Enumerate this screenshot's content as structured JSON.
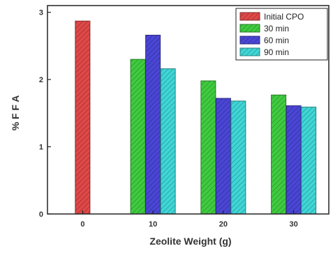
{
  "chart_data": {
    "type": "bar",
    "xlabel": "Zeolite Weight (g)",
    "ylabel": "% F F A",
    "xlim": [
      -5,
      35
    ],
    "ylim": [
      0,
      3.1
    ],
    "xticks": [
      0,
      10,
      20,
      30
    ],
    "yticks": [
      0,
      1,
      2,
      3
    ],
    "grid": false,
    "legend_position": "top-right",
    "series": [
      {
        "name": "Initial CPO",
        "color": "#e04848",
        "points": [
          {
            "x": 0,
            "y": 2.87
          }
        ]
      },
      {
        "name": "30 min",
        "color": "#3fcc3f",
        "points": [
          {
            "x": 10,
            "y": 2.3
          },
          {
            "x": 20,
            "y": 1.98
          },
          {
            "x": 30,
            "y": 1.77
          }
        ]
      },
      {
        "name": "60 min",
        "color": "#4a46d6",
        "points": [
          {
            "x": 10,
            "y": 2.66
          },
          {
            "x": 20,
            "y": 1.72
          },
          {
            "x": 30,
            "y": 1.61
          }
        ]
      },
      {
        "name": "90 min",
        "color": "#3fd6d6",
        "points": [
          {
            "x": 10,
            "y": 2.16
          },
          {
            "x": 20,
            "y": 1.68
          },
          {
            "x": 30,
            "y": 1.59
          }
        ]
      }
    ]
  }
}
